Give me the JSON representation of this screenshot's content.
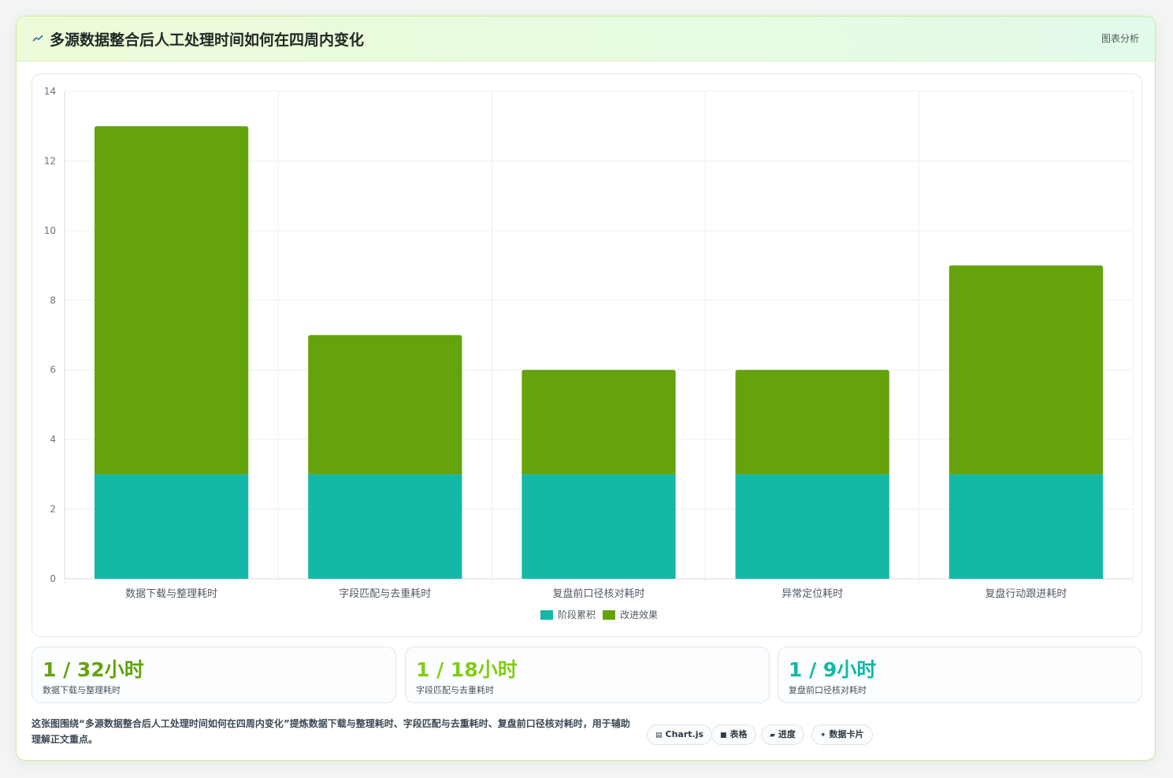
{
  "header": {
    "title": "多源数据整合后人工处理时间如何在四周内变化",
    "badge": "图表分析"
  },
  "colors": {
    "stage": "#14b8a6",
    "effect": "#65a30d",
    "kpi_green": "#65a30d",
    "kpi_lime": "#84cc16",
    "kpi_teal": "#14b8a6"
  },
  "chart_data": {
    "type": "bar",
    "stacked": true,
    "categories": [
      "数据下载与整理耗时",
      "字段匹配与去重耗时",
      "复盘前口径核对耗时",
      "异常定位耗时",
      "复盘行动跟进耗时"
    ],
    "series": [
      {
        "name": "阶段累积",
        "values": [
          3,
          3,
          3,
          3,
          3
        ],
        "color": "#14b8a6"
      },
      {
        "name": "改进效果",
        "values": [
          10,
          4,
          3,
          3,
          6
        ],
        "color": "#65a30d"
      }
    ],
    "ylim": [
      0,
      14
    ],
    "yticks": [
      0,
      2,
      4,
      6,
      8,
      10,
      12,
      14
    ],
    "grid": true,
    "legend": "bottom"
  },
  "kpis": [
    {
      "value": "1 / 32小时",
      "label": "数据下载与整理耗时",
      "color": "#65a30d"
    },
    {
      "value": "1 / 18小时",
      "label": "字段匹配与去重耗时",
      "color": "#84cc16"
    },
    {
      "value": "1 / 9小时",
      "label": "复盘前口径核对耗时",
      "color": "#14b8a6"
    }
  ],
  "footnote": "这张图围绕“多源数据整合后人工处理时间如何在四周内变化”提炼数据下载与整理耗时、字段匹配与去重耗时、复盘前口径核对耗时，用于辅助理解正文重点。",
  "chips": [
    {
      "icon": "▤",
      "label": "Chart.js"
    },
    {
      "icon": "■",
      "label": "表格"
    },
    {
      "icon": "▰",
      "label": "进度"
    },
    {
      "icon": "✦",
      "label": "数据卡片"
    }
  ]
}
